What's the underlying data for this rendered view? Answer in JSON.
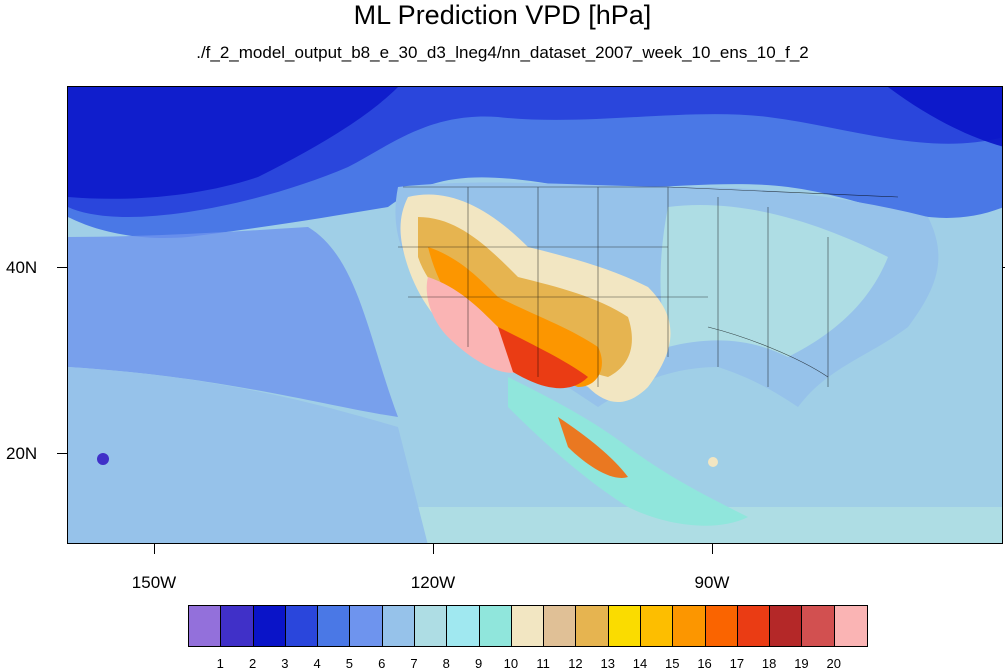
{
  "title": "ML Prediction VPD [hPa]",
  "subtitle": "./f_2_model_output_b8_e_30_d3_lneg4/nn_dataset_2007_week_10_ens_10_f_2",
  "axes": {
    "lat_labels": [
      "40N",
      "20N"
    ],
    "lon_labels": [
      "150W",
      "120W",
      "90W"
    ]
  },
  "colorbar": {
    "labels": [
      "1",
      "2",
      "3",
      "4",
      "5",
      "6",
      "7",
      "8",
      "9",
      "10",
      "11",
      "12",
      "13",
      "14",
      "15",
      "16",
      "17",
      "18",
      "19",
      "20"
    ],
    "colors": [
      "#9370db",
      "#4030c8",
      "#0a14c8",
      "#2a46dc",
      "#4a78e6",
      "#6e94ee",
      "#96c2ea",
      "#aedde4",
      "#a0e8f0",
      "#90e6dc",
      "#f2e6c2",
      "#e0c096",
      "#e6b450",
      "#fadc00",
      "#fdbe00",
      "#fc9600",
      "#fa6400",
      "#ea3c14",
      "#b42828",
      "#d25050",
      "#fab4b4"
    ]
  }
}
